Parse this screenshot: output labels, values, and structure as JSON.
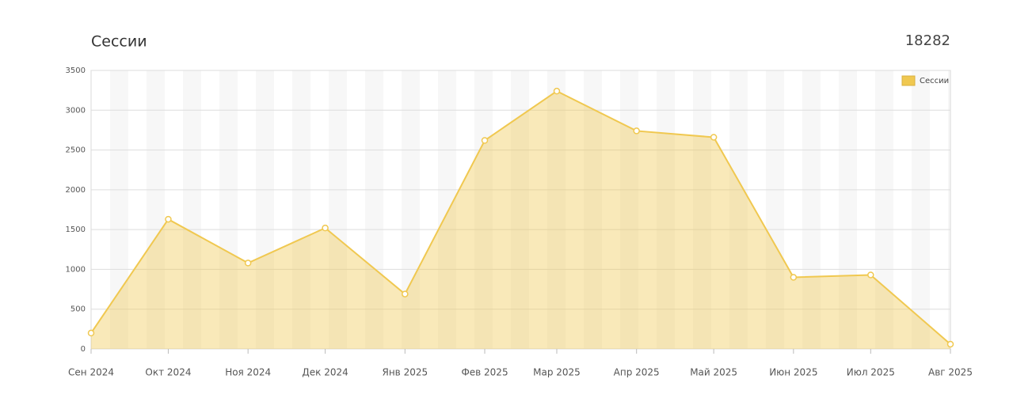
{
  "chart_data": {
    "type": "area",
    "title": "Сессии",
    "total": 18282,
    "x": [
      "2024-09",
      "2024-10",
      "2024-11",
      "2024-12",
      "2025-01",
      "2025-02",
      "2025-03",
      "2025-04",
      "2025-05",
      "2025-06",
      "2025-07",
      "2025-08"
    ],
    "xticks": [
      {
        "value": "2024-09",
        "label": "Сен 2024"
      },
      {
        "value": "2024-10",
        "label": "Окт 2024"
      },
      {
        "value": "2024-11",
        "label": "Ноя 2024"
      },
      {
        "value": "2024-12",
        "label": "Дек 2024"
      },
      {
        "value": "2025-01",
        "label": "Янв 2025"
      },
      {
        "value": "2025-02",
        "label": "Фев 2025"
      },
      {
        "value": "2025-03",
        "label": "Мар 2025"
      },
      {
        "value": "2025-04",
        "label": "Апр 2025"
      },
      {
        "value": "2025-05",
        "label": "Май 2025"
      },
      {
        "value": "2025-06",
        "label": "Июн 2025"
      },
      {
        "value": "2025-07",
        "label": "Июл 2025"
      },
      {
        "value": "2025-08",
        "label": "Авг 2025"
      }
    ],
    "series": [
      {
        "name": "Сессии",
        "color": "#f0c850",
        "values": [
          200,
          1630,
          1080,
          1520,
          690,
          2620,
          3240,
          2740,
          2660,
          900,
          930,
          60
        ]
      }
    ],
    "ylim": [
      0,
      3500
    ],
    "yticks": [
      0,
      500,
      1000,
      1500,
      2000,
      2500,
      3000,
      3500
    ],
    "grid": true,
    "legend": "top-right"
  }
}
